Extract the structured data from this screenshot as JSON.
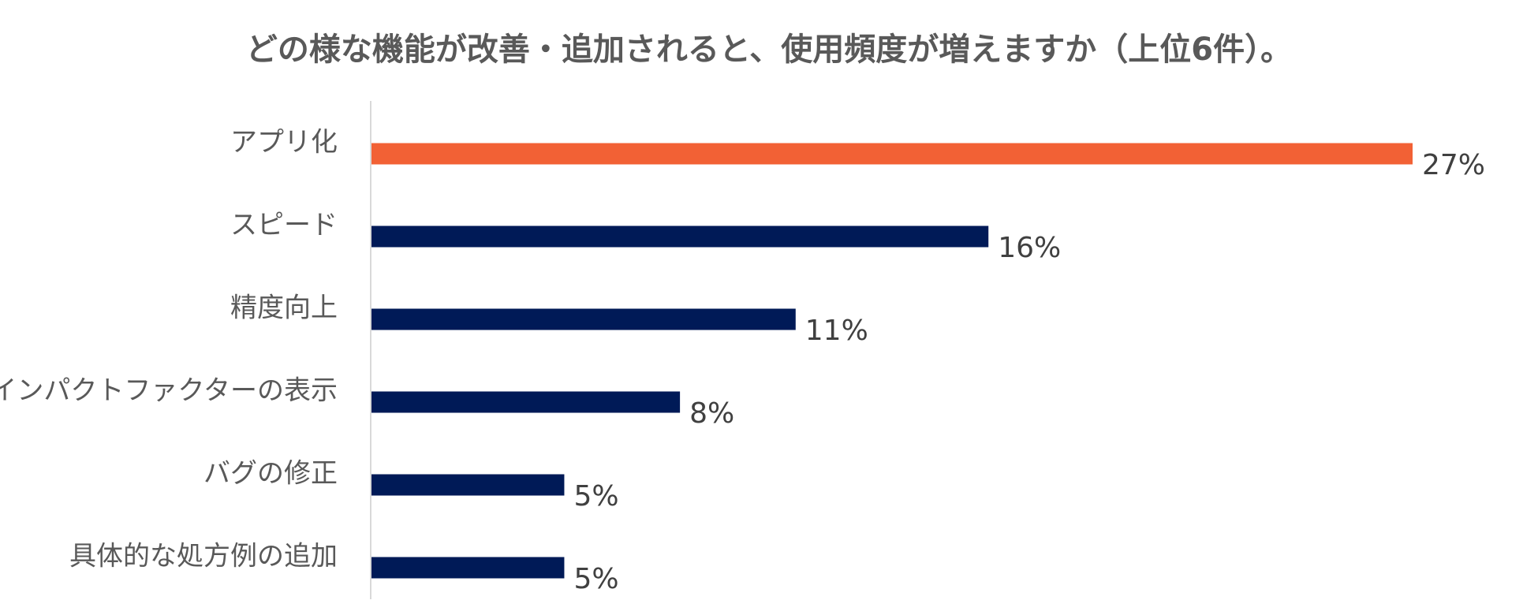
{
  "chart_data": {
    "type": "bar",
    "orientation": "horizontal",
    "title": "どの様な機能が改善・追加されると、使用頻度が増えますか（上位6件）。",
    "xlabel": "",
    "ylabel": "",
    "categories": [
      "アプリ化",
      "スピード",
      "精度向上",
      "インパクトファクターの表示",
      "バグの修正",
      "具体的な処方例の追加"
    ],
    "values": [
      27,
      16,
      11,
      8,
      5,
      5
    ],
    "data_labels": [
      "27%",
      "16%",
      "11%",
      "8%",
      "5%",
      "5%"
    ],
    "value_unit": "%",
    "xlim": [
      0,
      27
    ],
    "grid": false,
    "legend": "none",
    "colors": {
      "highlight": "#F26135",
      "default": "#001A57",
      "axis": "#D9D9D9",
      "title": "#595959",
      "label": "#595959",
      "data_label": "#404040"
    },
    "highlight_index": 0
  }
}
